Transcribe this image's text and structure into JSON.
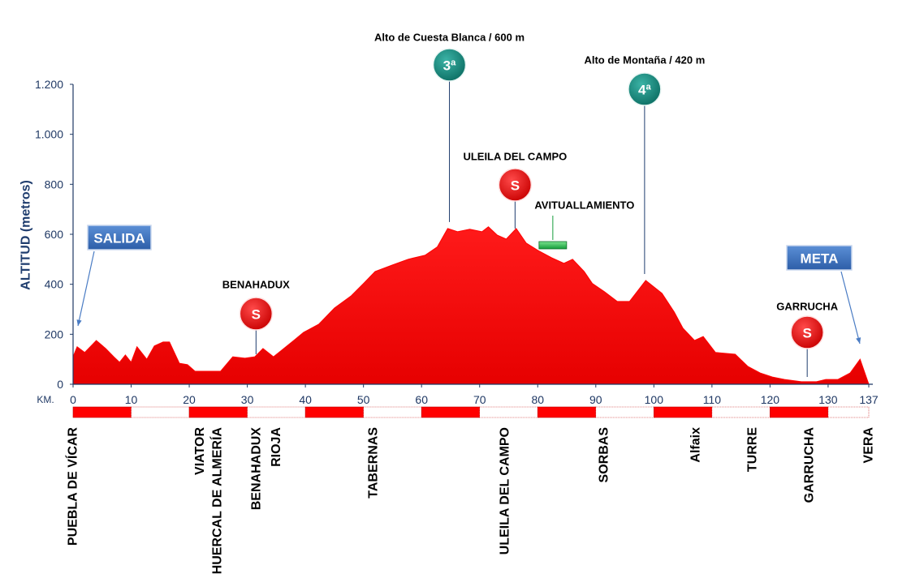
{
  "chart_data": {
    "type": "area",
    "y_label": "ALTITUD (metros)",
    "x_label": "KM.",
    "color": "#ff0000",
    "x": [
      0,
      0.7,
      2,
      4,
      5.6,
      7,
      8,
      9,
      10,
      11,
      12.7,
      14,
      15.5,
      16.6,
      18.3,
      19.7,
      21,
      25.4,
      27.5,
      29.6,
      31.3,
      32.7,
      34.5,
      35.9,
      38,
      39.7,
      42.3,
      45,
      47.9,
      50,
      52,
      55,
      57.7,
      60.6,
      62.7,
      64.5,
      66.2,
      68.3,
      70.4,
      71.5,
      73,
      74.6,
      76.3,
      78,
      80.3,
      82.4,
      84.5,
      86,
      88,
      89.4,
      91.5,
      93.7,
      95.8,
      98.6,
      101.4,
      103.5,
      105,
      107,
      108.5,
      110.6,
      114,
      116.2,
      118.3,
      120.4,
      122.5,
      125.4,
      128,
      129.6,
      131.7,
      133.8,
      135.5,
      137
    ],
    "values": [
      110,
      150,
      127,
      175,
      143,
      110,
      88,
      117,
      88,
      150,
      100,
      153,
      169,
      169,
      84,
      78,
      52,
      52,
      110,
      104,
      110,
      143,
      110,
      136,
      175,
      208,
      240,
      305,
      354,
      403,
      451,
      477,
      500,
      516,
      549,
      623,
      610,
      620,
      610,
      630,
      597,
      581,
      623,
      565,
      532,
      506,
      484,
      500,
      451,
      403,
      370,
      331,
      331,
      415,
      364,
      289,
      224,
      175,
      191,
      127,
      120,
      71,
      45,
      29,
      19,
      10,
      10,
      19,
      19,
      45,
      100,
      0
    ],
    "xlim": [
      0,
      137
    ],
    "ylim": [
      0,
      1200
    ],
    "xticks": [
      0,
      10,
      20,
      30,
      40,
      50,
      60,
      70,
      80,
      90,
      100,
      110,
      120,
      130,
      137
    ],
    "yticks": [
      0,
      200,
      400,
      600,
      800,
      {
        "value": 1000,
        "label": "1.000"
      },
      {
        "value": 1200,
        "label": "1.200"
      }
    ],
    "start": "SALIDA",
    "finish": "META",
    "climbs": [
      {
        "label": "Alto de Cuesta Blanca / 600 m",
        "category": "3ª",
        "x": 64.8
      },
      {
        "label": "Alto de Montaña / 420 m",
        "category": "4ª",
        "x": 98.4
      }
    ],
    "sprints": [
      {
        "label": "BENAHADUX",
        "symbol": "S",
        "x": 31.5
      },
      {
        "label": "ULEILA DEL CAMPO",
        "symbol": "S",
        "x": 76.1
      },
      {
        "label": "GARRUCHA",
        "symbol": "S",
        "x": 126.4
      }
    ],
    "feed_zone": {
      "label": "AVITUALLAMIENTO",
      "x": 82.6
    },
    "towns": [
      {
        "name": "PUEBLA DE VÍCAR",
        "x": 0
      },
      {
        "name": "VIATOR",
        "x": 21.9
      },
      {
        "name": "HUERCAL DE ALMERÍA",
        "x": 24.9
      },
      {
        "name": "BENAHADUX",
        "x": 31.6
      },
      {
        "name": "RIOJA",
        "x": 35
      },
      {
        "name": "TABERNAS",
        "x": 51.7
      },
      {
        "name": "ULEILA DEL CAMPO",
        "x": 74.4
      },
      {
        "name": "SORBAS",
        "x": 91.4
      },
      {
        "name": "Alfaix",
        "x": 107.2
      },
      {
        "name": "TURRE",
        "x": 117
      },
      {
        "name": "GARRUCHA",
        "x": 126.8
      },
      {
        "name": "VERA",
        "x": 137
      }
    ]
  }
}
